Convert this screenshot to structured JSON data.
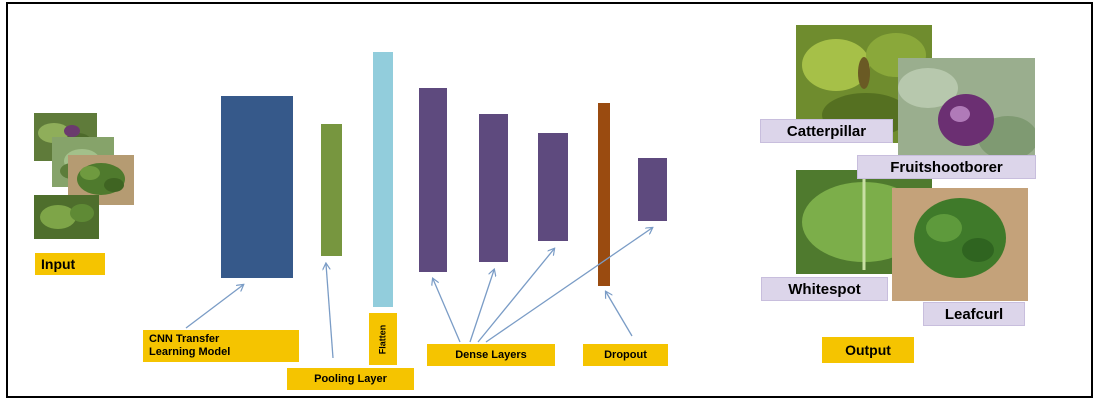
{
  "input_label": "Input",
  "output_label": "Output",
  "layers": {
    "cnn": "CNN Transfer\nLearning Model",
    "pooling": "Pooling Layer",
    "flatten": "Flatten",
    "dense": "Dense Layers",
    "dropout": "Dropout"
  },
  "classes": {
    "catterpillar": "Catterpillar",
    "fruitshootborer": "Fruitshootborer",
    "whitespot": "Whitespot",
    "leafcurl": "Leafcurl"
  },
  "colors": {
    "cnn": "#36598a",
    "pooling": "#77963f",
    "flatten": "#92cddc",
    "dense": "#5e4a7e",
    "dropout": "#9a4b10",
    "label_yellow": "#f5c400",
    "label_purple": "#dcd5ea",
    "arrow": "#7a9cc6"
  }
}
